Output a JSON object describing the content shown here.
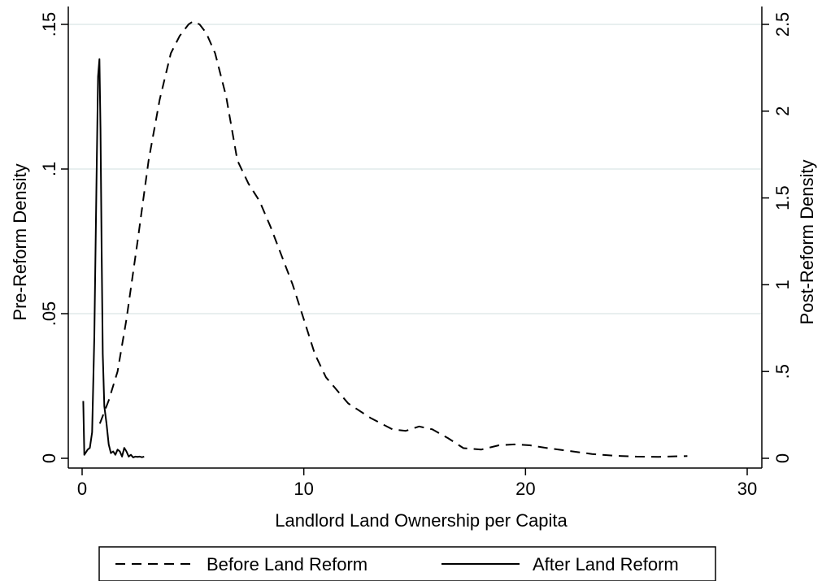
{
  "chart_data": {
    "type": "line",
    "xlabel": "Landlord Land Ownership per Capita",
    "ylabel_left": "Pre-Reform Density",
    "ylabel_right": "Post-Reform Density",
    "xlim": [
      0,
      30
    ],
    "ylim_left": [
      0,
      0.15
    ],
    "ylim_right": [
      0,
      2.5
    ],
    "x_ticks": [
      {
        "value": 0,
        "label": "0"
      },
      {
        "value": 10,
        "label": "10"
      },
      {
        "value": 20,
        "label": "20"
      },
      {
        "value": 30,
        "label": "30"
      }
    ],
    "y_ticks_left": [
      {
        "value": 0,
        "label": "0"
      },
      {
        "value": 0.05,
        "label": ".05"
      },
      {
        "value": 0.1,
        "label": ".1"
      },
      {
        "value": 0.15,
        "label": ".15"
      }
    ],
    "y_ticks_right": [
      {
        "value": 0,
        "label": "0"
      },
      {
        "value": 0.5,
        "label": ".5"
      },
      {
        "value": 1,
        "label": "1"
      },
      {
        "value": 1.5,
        "label": "1.5"
      },
      {
        "value": 2,
        "label": "2"
      },
      {
        "value": 2.5,
        "label": "2.5"
      }
    ],
    "grid": "horizontal",
    "legend_position": "bottom",
    "colors": {
      "line": "#000000",
      "grid": "#e1eaea",
      "background": "#ffffff"
    },
    "series": [
      {
        "name": "Before Land Reform",
        "axis": "left",
        "style": "dashed",
        "x": [
          0.8,
          1.2,
          1.6,
          2.0,
          2.5,
          3.0,
          3.5,
          4.0,
          4.4,
          4.8,
          5.0,
          5.3,
          5.6,
          6.0,
          6.5,
          7.0,
          7.5,
          8.0,
          8.5,
          9.0,
          9.5,
          10.0,
          10.5,
          11.0,
          12.0,
          13.0,
          14.0,
          14.6,
          15.2,
          15.8,
          16.5,
          17.2,
          18.0,
          18.8,
          19.5,
          20.2,
          21.0,
          22.0,
          23.0,
          24.0,
          25.0,
          26.0,
          27.3
        ],
        "y": [
          0.012,
          0.02,
          0.03,
          0.048,
          0.075,
          0.103,
          0.124,
          0.14,
          0.146,
          0.15,
          0.151,
          0.15,
          0.147,
          0.14,
          0.125,
          0.103,
          0.095,
          0.089,
          0.08,
          0.07,
          0.06,
          0.048,
          0.036,
          0.028,
          0.019,
          0.014,
          0.01,
          0.0095,
          0.011,
          0.01,
          0.007,
          0.0035,
          0.003,
          0.0045,
          0.0048,
          0.0045,
          0.0035,
          0.0025,
          0.0015,
          0.0009,
          0.0006,
          0.0005,
          0.0008
        ]
      },
      {
        "name": "After Land Reform",
        "axis": "right",
        "style": "solid",
        "x": [
          0.05,
          0.1,
          0.15,
          0.25,
          0.35,
          0.45,
          0.55,
          0.65,
          0.72,
          0.78,
          0.83,
          0.88,
          0.93,
          1.0,
          1.1,
          1.2,
          1.3,
          1.4,
          1.5,
          1.6,
          1.7,
          1.8,
          1.9,
          2.0,
          2.1,
          2.2,
          2.3,
          2.4,
          2.5,
          2.6,
          2.7,
          2.8
        ],
        "y": [
          0.33,
          0.02,
          0.03,
          0.05,
          0.06,
          0.15,
          0.7,
          1.6,
          2.2,
          2.3,
          1.9,
          1.2,
          0.6,
          0.3,
          0.2,
          0.08,
          0.03,
          0.04,
          0.02,
          0.05,
          0.04,
          0.01,
          0.06,
          0.04,
          0.01,
          0.02,
          0.005,
          0.01,
          0.008,
          0.01,
          0.006,
          0.01
        ]
      }
    ]
  }
}
